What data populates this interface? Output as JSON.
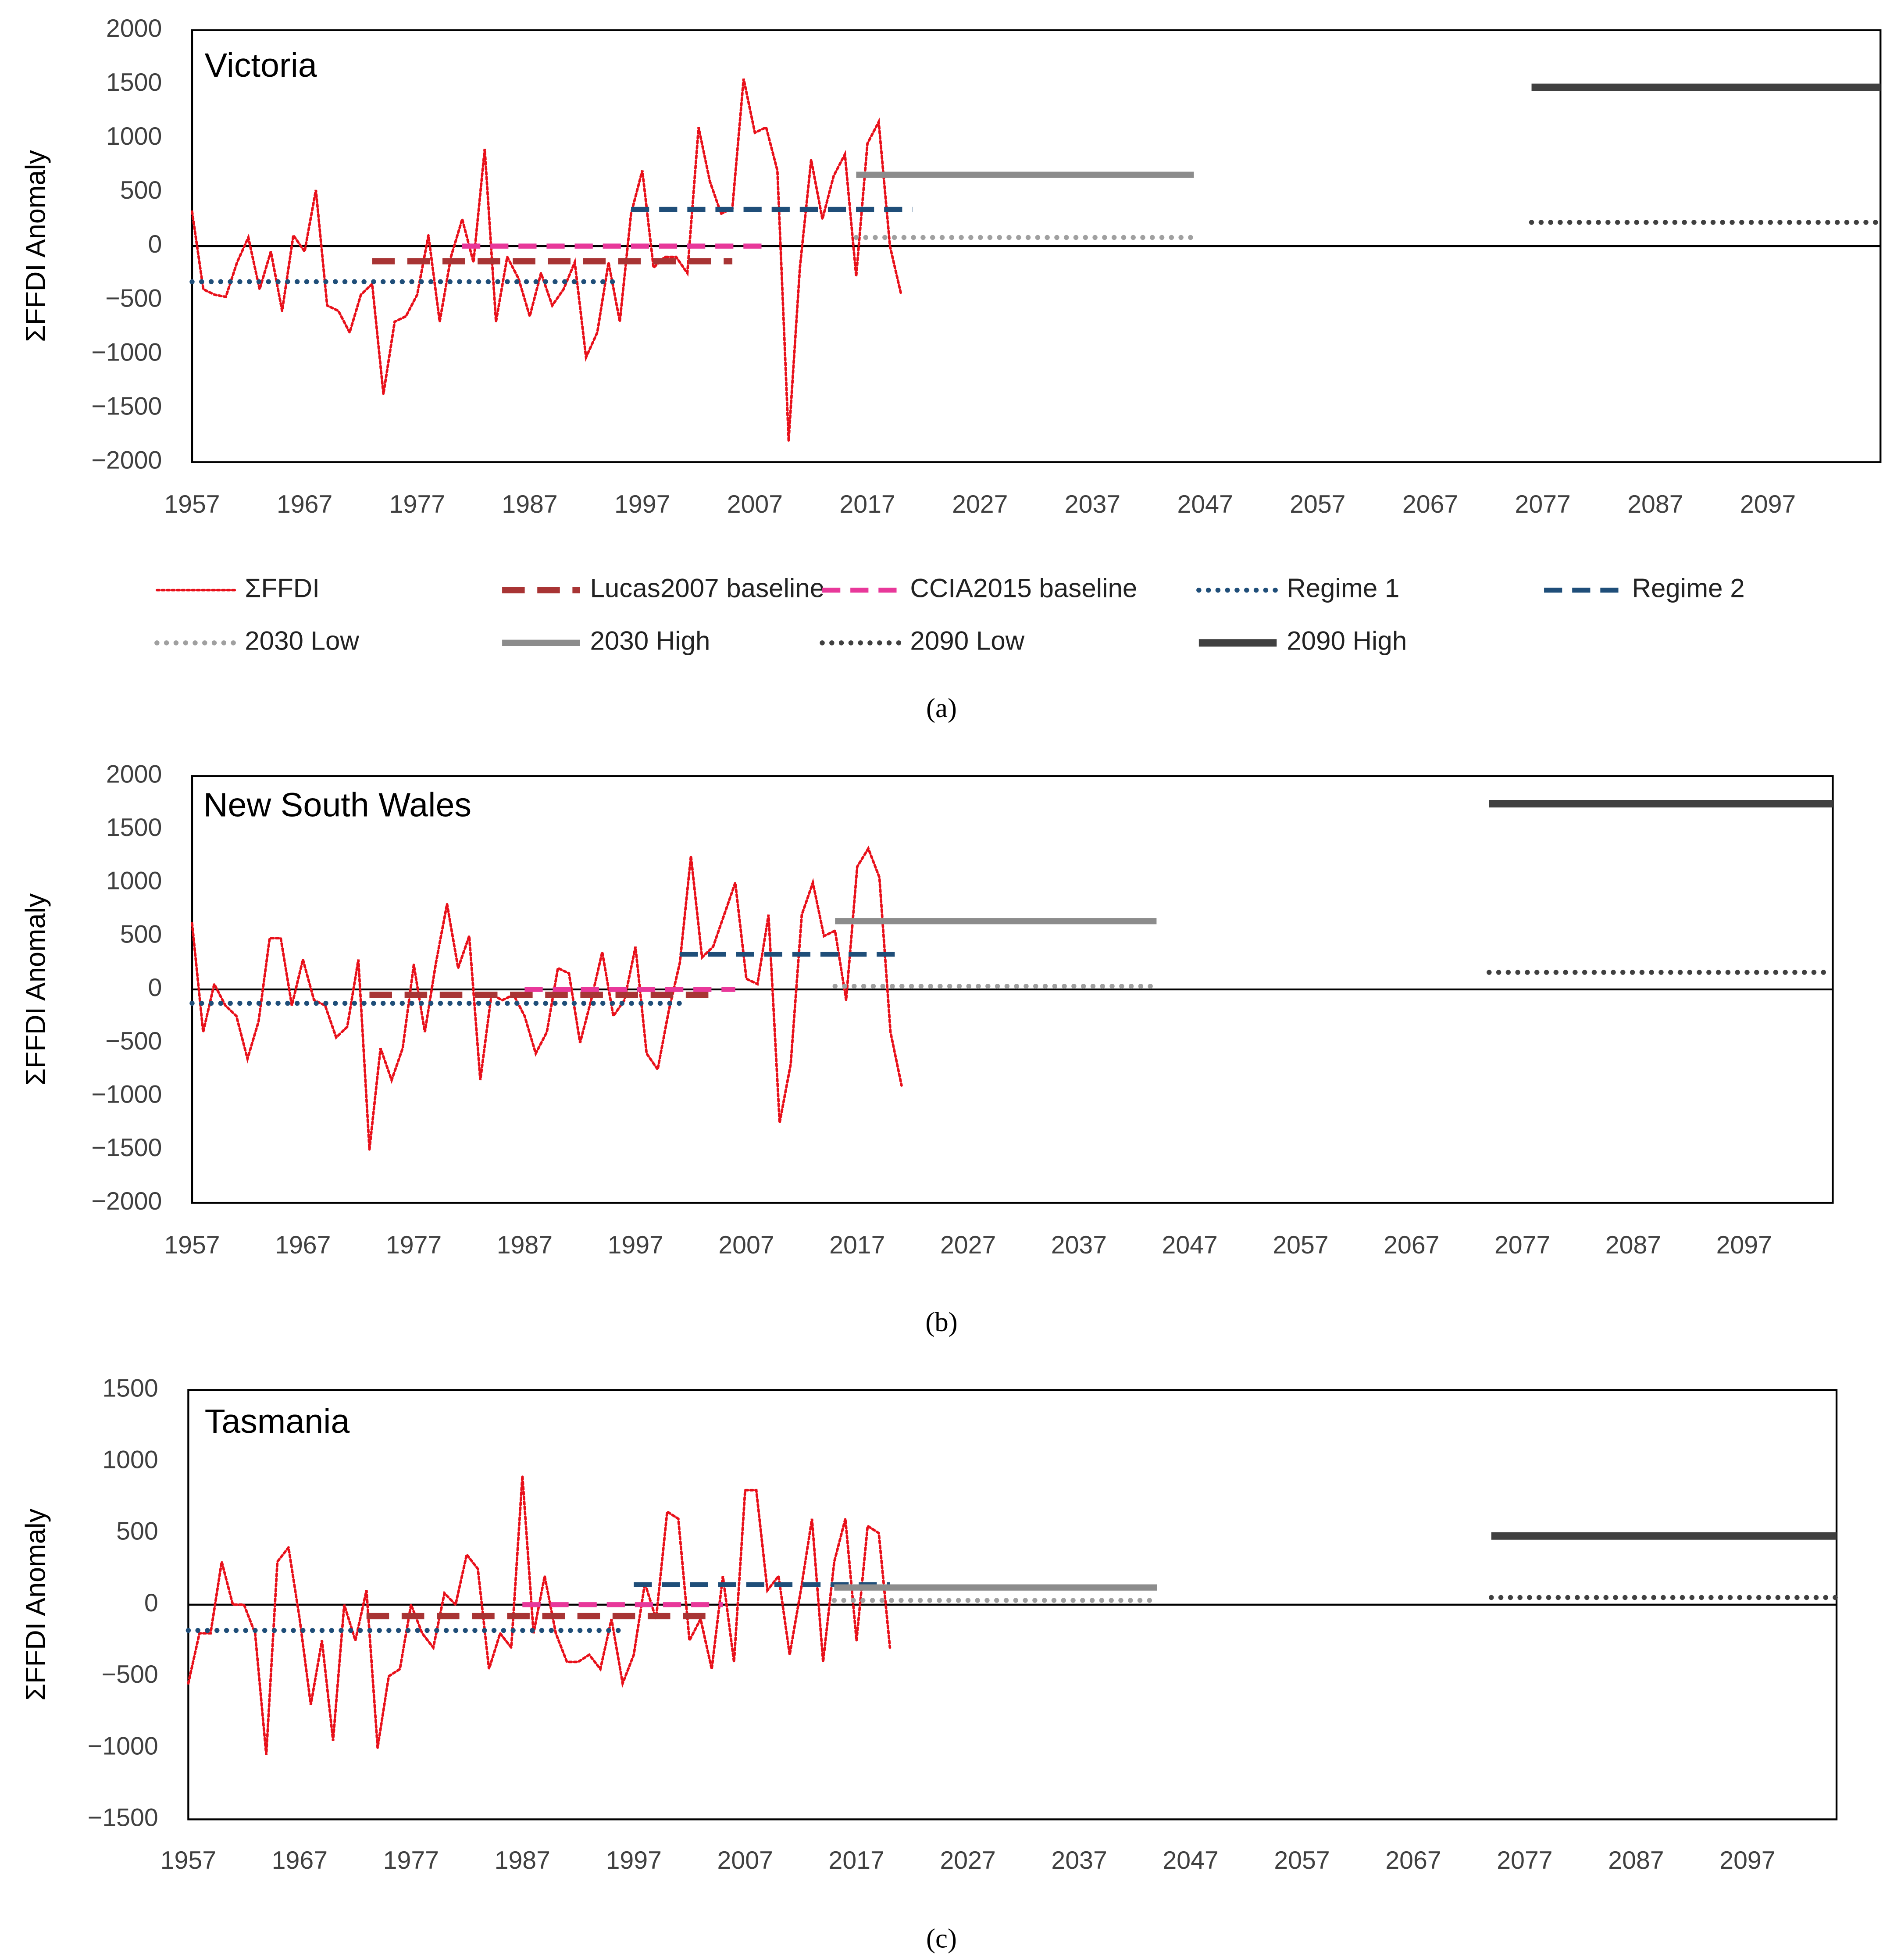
{
  "chart_data": [
    {
      "type": "line",
      "title": "Victoria",
      "ylabel": "ΣFFDI Anomaly",
      "caption": "(a)",
      "legend": true,
      "xlim": [
        1957,
        2107
      ],
      "xticks": [
        1957,
        1967,
        1977,
        1987,
        1997,
        2007,
        2017,
        2027,
        2037,
        2047,
        2057,
        2067,
        2077,
        2087,
        2097
      ],
      "ylim": [
        -2000,
        2000
      ],
      "yticks": [
        {
          "value": -2000,
          "label": "−2000"
        },
        {
          "value": -1500,
          "label": "−1500"
        },
        {
          "value": -1000,
          "label": "−1000"
        },
        {
          "value": -500,
          "label": "−500"
        },
        0,
        500,
        1000,
        1500,
        2000
      ],
      "series": [
        {
          "name": "ΣFFDI",
          "color": "#e8101a",
          "style": "dotted",
          "width": 2,
          "x": [
            1957,
            1958,
            1959,
            1960,
            1961,
            1962,
            1963,
            1964,
            1965,
            1966,
            1967,
            1968,
            1969,
            1970,
            1971,
            1972,
            1973,
            1974,
            1975,
            1976,
            1977,
            1978,
            1979,
            1980,
            1981,
            1982,
            1983,
            1984,
            1985,
            1986,
            1987,
            1988,
            1989,
            1990,
            1991,
            1992,
            1993,
            1994,
            1995,
            1996,
            1997,
            1998,
            1999,
            2000,
            2001,
            2002,
            2003,
            2004,
            2005,
            2006,
            2007,
            2008,
            2009,
            2010,
            2011,
            2012,
            2013,
            2014,
            2015,
            2016,
            2017,
            2018,
            2019,
            2020
          ],
          "values": [
            320,
            -400,
            -450,
            -470,
            -150,
            80,
            -400,
            -50,
            -600,
            100,
            -50,
            520,
            -550,
            -600,
            -800,
            -450,
            -350,
            -1370,
            -700,
            -650,
            -450,
            100,
            -700,
            -100,
            250,
            -150,
            900,
            -700,
            -100,
            -300,
            -650,
            -250,
            -550,
            -400,
            -150,
            -1030,
            -800,
            -150,
            -700,
            300,
            700,
            -200,
            -100,
            -100,
            -250,
            1100,
            600,
            300,
            350,
            1550,
            1050,
            1100,
            700,
            -1800,
            -200,
            800,
            250,
            650,
            850,
            -280,
            950,
            1150,
            0,
            -450
          ]
        },
        {
          "name": "Lucas2007 baseline",
          "color": "#a83434",
          "style": "dashed",
          "width": 5,
          "x": [
            1973,
            2005
          ],
          "values": [
            -140,
            -140
          ]
        },
        {
          "name": "CCIA2015 baseline",
          "color": "#e8389a",
          "style": "dashed",
          "width": 4,
          "x": [
            1981,
            2008
          ],
          "values": [
            0,
            0
          ]
        },
        {
          "name": "Regime 1",
          "color": "#1f4e79",
          "style": "dotted",
          "width": 4,
          "x": [
            1957,
            1995
          ],
          "values": [
            -330,
            -330
          ]
        },
        {
          "name": "Regime 2",
          "color": "#1f4e79",
          "style": "dashed",
          "width": 4,
          "x": [
            1996,
            2021
          ],
          "values": [
            340,
            340
          ]
        },
        {
          "name": "2030 Low",
          "color": "#a0a0a0",
          "style": "dotted",
          "width": 4,
          "x": [
            2016,
            2046
          ],
          "values": [
            80,
            80
          ]
        },
        {
          "name": "2030 High",
          "color": "#8c8c8c",
          "style": "solid",
          "width": 5,
          "x": [
            2016,
            2046
          ],
          "values": [
            660,
            660
          ]
        },
        {
          "name": "2090 Low",
          "color": "#404040",
          "style": "dotted",
          "width": 4,
          "x": [
            2076,
            2107
          ],
          "values": [
            220,
            220
          ]
        },
        {
          "name": "2090 High",
          "color": "#404040",
          "style": "solid",
          "width": 6,
          "x": [
            2076,
            2107
          ],
          "values": [
            1470,
            1470
          ]
        }
      ]
    },
    {
      "type": "line",
      "title": "New South Wales",
      "ylabel": "ΣFFDI Anomaly",
      "caption": "(b)",
      "legend": false,
      "xlim": [
        1957,
        2105
      ],
      "xticks": [
        1957,
        1967,
        1977,
        1987,
        1997,
        2007,
        2017,
        2027,
        2037,
        2047,
        2057,
        2067,
        2077,
        2087,
        2097
      ],
      "ylim": [
        -2000,
        2000
      ],
      "yticks": [
        {
          "value": -2000,
          "label": "−2000"
        },
        {
          "value": -1500,
          "label": "−1500"
        },
        {
          "value": -1000,
          "label": "−1000"
        },
        {
          "value": -500,
          "label": "−500"
        },
        0,
        500,
        1000,
        1500,
        2000
      ],
      "series": [
        {
          "color": "#e8101a",
          "style": "dotted",
          "width": 2,
          "x": [
            1957,
            1958,
            1959,
            1960,
            1961,
            1962,
            1963,
            1964,
            1965,
            1966,
            1967,
            1968,
            1969,
            1970,
            1971,
            1972,
            1973,
            1974,
            1975,
            1976,
            1977,
            1978,
            1979,
            1980,
            1981,
            1982,
            1983,
            1984,
            1985,
            1986,
            1987,
            1988,
            1989,
            1990,
            1991,
            1992,
            1993,
            1994,
            1995,
            1996,
            1997,
            1998,
            1999,
            2000,
            2001,
            2002,
            2003,
            2004,
            2005,
            2006,
            2007,
            2008,
            2009,
            2010,
            2011,
            2012,
            2013,
            2014,
            2015,
            2016,
            2017,
            2018,
            2019,
            2020,
            2021
          ],
          "values": [
            620,
            -400,
            50,
            -150,
            -250,
            -650,
            -300,
            480,
            480,
            -150,
            280,
            -100,
            -150,
            -450,
            -350,
            280,
            -1500,
            -550,
            -850,
            -550,
            230,
            -400,
            250,
            800,
            200,
            500,
            -850,
            -50,
            -100,
            -50,
            -250,
            -600,
            -400,
            200,
            150,
            -500,
            -100,
            350,
            -250,
            -100,
            400,
            -600,
            -750,
            -200,
            250,
            1250,
            300,
            400,
            700,
            1000,
            100,
            50,
            700,
            -1250,
            -700,
            700,
            1000,
            500,
            550,
            -100,
            1150,
            1320,
            1050,
            -400,
            -900
          ]
        },
        {
          "color": "#a83434",
          "style": "dashed",
          "width": 5,
          "x": [
            1973,
            2004
          ],
          "values": [
            -50,
            -50
          ]
        },
        {
          "color": "#e8389a",
          "style": "dashed",
          "width": 4,
          "x": [
            1987,
            2006
          ],
          "values": [
            0,
            0
          ]
        },
        {
          "color": "#1f4e79",
          "style": "dotted",
          "width": 4,
          "x": [
            1957,
            2001
          ],
          "values": [
            -130,
            -130
          ]
        },
        {
          "color": "#1f4e79",
          "style": "dashed",
          "width": 4,
          "x": [
            2001,
            2021
          ],
          "values": [
            330,
            330
          ]
        },
        {
          "color": "#a0a0a0",
          "style": "dotted",
          "width": 4,
          "x": [
            2015,
            2044
          ],
          "values": [
            30,
            30
          ]
        },
        {
          "color": "#8c8c8c",
          "style": "solid",
          "width": 5,
          "x": [
            2015,
            2044
          ],
          "values": [
            640,
            640
          ]
        },
        {
          "color": "#404040",
          "style": "dotted",
          "width": 4,
          "x": [
            2074,
            2105
          ],
          "values": [
            160,
            160
          ]
        },
        {
          "color": "#404040",
          "style": "solid",
          "width": 6,
          "x": [
            2074,
            2105
          ],
          "values": [
            1740,
            1740
          ]
        }
      ]
    },
    {
      "type": "line",
      "title": "Tasmania",
      "ylabel": "ΣFFDI Anomaly",
      "caption": "(c)",
      "legend": false,
      "xlim": [
        1957,
        2105
      ],
      "xticks": [
        1957,
        1967,
        1977,
        1987,
        1997,
        2007,
        2017,
        2027,
        2037,
        2047,
        2057,
        2067,
        2077,
        2087,
        2097
      ],
      "ylim": [
        -1500,
        1500
      ],
      "yticks": [
        {
          "value": -1500,
          "label": "−1500"
        },
        {
          "value": -1000,
          "label": "−1000"
        },
        {
          "value": -500,
          "label": "−500"
        },
        0,
        500,
        1000,
        1500
      ],
      "series": [
        {
          "color": "#e8101a",
          "style": "dotted",
          "width": 2,
          "x": [
            1957,
            1958,
            1959,
            1960,
            1961,
            1962,
            1963,
            1964,
            1965,
            1966,
            1967,
            1968,
            1969,
            1970,
            1971,
            1972,
            1973,
            1974,
            1975,
            1976,
            1977,
            1978,
            1979,
            1980,
            1981,
            1982,
            1983,
            1984,
            1985,
            1986,
            1987,
            1988,
            1989,
            1990,
            1991,
            1992,
            1993,
            1994,
            1995,
            1996,
            1997,
            1998,
            1999,
            2000,
            2001,
            2002,
            2003,
            2004,
            2005,
            2006,
            2007,
            2008,
            2009,
            2010,
            2011,
            2012,
            2013,
            2014,
            2015,
            2016,
            2017,
            2018,
            2019,
            2020
          ],
          "values": [
            -550,
            -200,
            -200,
            300,
            0,
            0,
            -200,
            -1050,
            300,
            400,
            -100,
            -700,
            -250,
            -950,
            0,
            -250,
            100,
            -1000,
            -500,
            -450,
            0,
            -200,
            -300,
            80,
            0,
            350,
            250,
            -450,
            -200,
            -300,
            900,
            -200,
            200,
            -200,
            -400,
            -400,
            -350,
            -450,
            -100,
            -550,
            -350,
            150,
            -100,
            650,
            600,
            -250,
            -100,
            -450,
            200,
            -400,
            800,
            800,
            100,
            200,
            -350,
            100,
            600,
            -400,
            300,
            600,
            -250,
            550,
            500,
            -300
          ]
        },
        {
          "color": "#a83434",
          "style": "dashed",
          "width": 5,
          "x": [
            1973,
            2004
          ],
          "values": [
            -80,
            -80
          ]
        },
        {
          "color": "#e8389a",
          "style": "dashed",
          "width": 4,
          "x": [
            1987,
            2005
          ],
          "values": [
            0,
            0
          ]
        },
        {
          "color": "#1f4e79",
          "style": "dotted",
          "width": 4,
          "x": [
            1957,
            1996
          ],
          "values": [
            -180,
            -180
          ]
        },
        {
          "color": "#1f4e79",
          "style": "dashed",
          "width": 4,
          "x": [
            1997,
            2020
          ],
          "values": [
            140,
            140
          ]
        },
        {
          "color": "#a0a0a0",
          "style": "dotted",
          "width": 4,
          "x": [
            2015,
            2044
          ],
          "values": [
            30,
            30
          ]
        },
        {
          "color": "#8c8c8c",
          "style": "solid",
          "width": 5,
          "x": [
            2015,
            2044
          ],
          "values": [
            120,
            120
          ]
        },
        {
          "color": "#404040",
          "style": "dotted",
          "width": 4,
          "x": [
            2074,
            2105
          ],
          "values": [
            50,
            50
          ]
        },
        {
          "color": "#404040",
          "style": "solid",
          "width": 6,
          "x": [
            2074,
            2105
          ],
          "values": [
            480,
            480
          ]
        }
      ]
    }
  ]
}
